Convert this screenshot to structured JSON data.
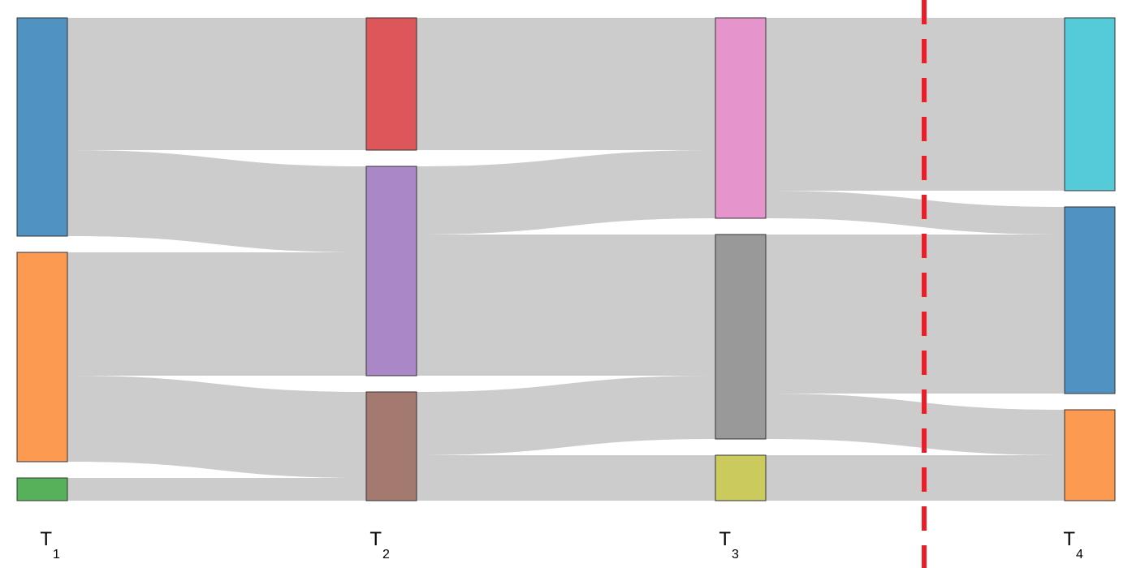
{
  "chart_data": {
    "type": "sankey",
    "columns": [
      {
        "label": "T",
        "sub": "1"
      },
      {
        "label": "T",
        "sub": "2"
      },
      {
        "label": "T",
        "sub": "3"
      },
      {
        "label": "T",
        "sub": "4"
      }
    ],
    "nodes": [
      {
        "column": 0,
        "color": "#5092c2"
      },
      {
        "column": 0,
        "color": "#fd9a52"
      },
      {
        "column": 0,
        "color": "#57b05a"
      },
      {
        "column": 1,
        "color": "#dd5659"
      },
      {
        "column": 1,
        "color": "#aa88c8"
      },
      {
        "column": 1,
        "color": "#a47970"
      },
      {
        "column": 2,
        "color": "#e695cc"
      },
      {
        "column": 2,
        "color": "#999999"
      },
      {
        "column": 2,
        "color": "#cbcb5d"
      },
      {
        "column": 3,
        "color": "#55cad9"
      },
      {
        "column": 3,
        "color": "#5092c2"
      },
      {
        "column": 3,
        "color": "#fd9a52"
      }
    ],
    "links": [
      {
        "source": 0,
        "target": 3,
        "value": 163
      },
      {
        "source": 0,
        "target": 4,
        "value": 106
      },
      {
        "source": 1,
        "target": 4,
        "value": 152
      },
      {
        "source": 1,
        "target": 5,
        "value": 106
      },
      {
        "source": 2,
        "target": 5,
        "value": 28
      },
      {
        "source": 3,
        "target": 6,
        "value": 163
      },
      {
        "source": 4,
        "target": 6,
        "value": 84
      },
      {
        "source": 4,
        "target": 7,
        "value": 174
      },
      {
        "source": 5,
        "target": 7,
        "value": 78
      },
      {
        "source": 5,
        "target": 8,
        "value": 56
      },
      {
        "source": 6,
        "target": 9,
        "value": 213
      },
      {
        "source": 6,
        "target": 10,
        "value": 34
      },
      {
        "source": 7,
        "target": 10,
        "value": 196
      },
      {
        "source": 7,
        "target": 11,
        "value": 56
      },
      {
        "source": 8,
        "target": 11,
        "value": 56
      }
    ],
    "link_color": "#cccccc",
    "divider": {
      "after_column": 2,
      "color": "#ee1c25",
      "style": "dashed"
    }
  }
}
